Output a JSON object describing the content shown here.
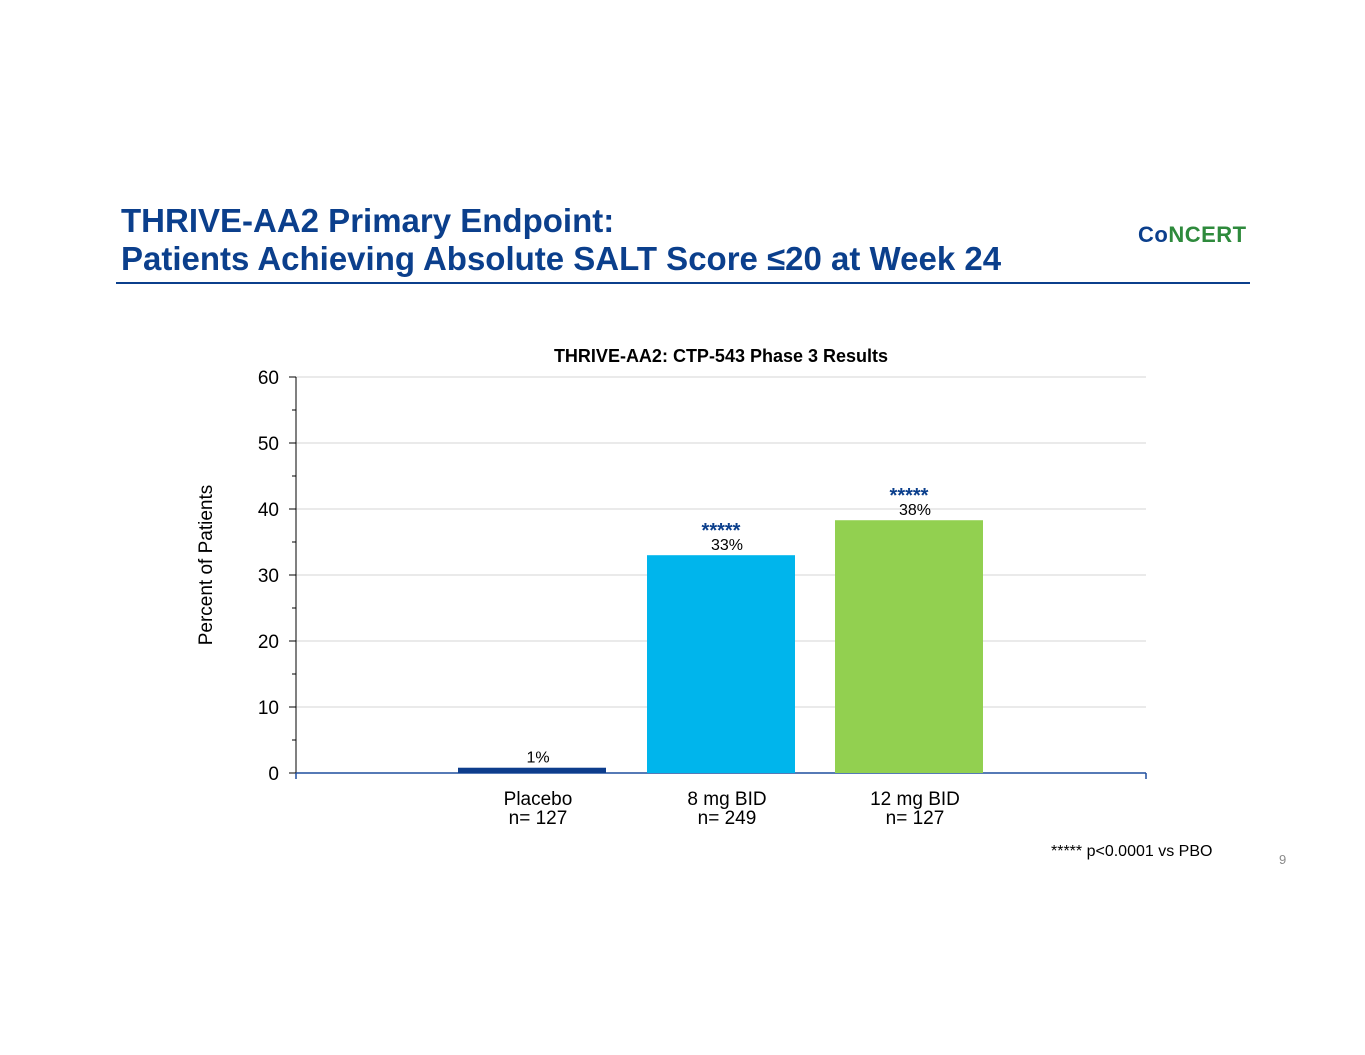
{
  "slide": {
    "title_line1": "THRIVE-AA2 Primary Endpoint:",
    "title_line2": "Patients Achieving Absolute SALT Score ≤20 at Week 24",
    "logo_part1": "Co",
    "logo_part2": "NCERT",
    "footnote": "***** p<0.0001 vs PBO",
    "page_number": "9"
  },
  "colors": {
    "title": "#0b3f8c",
    "logo_blue": "#0b3f8c",
    "logo_green": "#2e8a3c",
    "placebo": "#0d3d8c",
    "dose_8mg": "#00b5ec",
    "dose_12mg": "#92d050",
    "significance": "#0b3f8c"
  },
  "chart_data": {
    "type": "bar",
    "title": "THRIVE-AA2: CTP-543 Phase 3 Results",
    "xlabel": "",
    "ylabel": "Percent of Patients",
    "ylim": [
      0,
      60
    ],
    "yticks": [
      0,
      10,
      20,
      30,
      40,
      50,
      60
    ],
    "grid": true,
    "categories": [
      {
        "name": "Placebo",
        "n": "n= 127"
      },
      {
        "name": "8 mg BID",
        "n": "n= 249"
      },
      {
        "name": "12 mg BID",
        "n": "n= 127"
      }
    ],
    "values": [
      0.8,
      33,
      38.3
    ],
    "data_labels": [
      "1%",
      "33%",
      "38%"
    ],
    "significance": [
      "",
      "*****",
      "*****"
    ]
  }
}
